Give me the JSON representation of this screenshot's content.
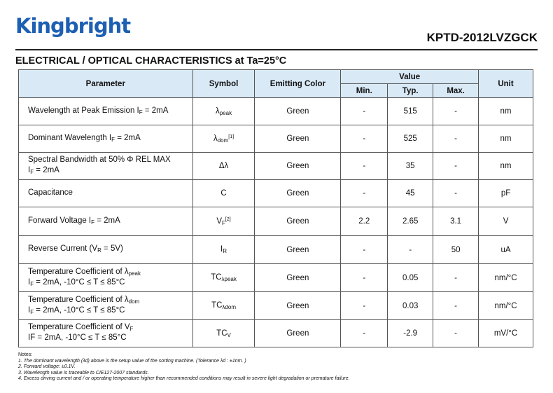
{
  "header": {
    "logo": "Kingbright",
    "part_number": "KPTD-2012LVZGCK",
    "section_title": "ELECTRICAL / OPTICAL CHARACTERISTICS at Ta=25°C"
  },
  "table": {
    "headers": {
      "parameter": "Parameter",
      "symbol": "Symbol",
      "color": "Emitting Color",
      "value": "Value",
      "min": "Min.",
      "typ": "Typ.",
      "max": "Max.",
      "unit": "Unit"
    },
    "rows": [
      {
        "p1a": "Wavelength at Peak Emission I",
        "p1s": "F",
        "p1b": " = 2mA",
        "p2a": "",
        "p2s": "",
        "p2b": "",
        "sym": "λ",
        "sym_sub": "peak",
        "sym_sup": "",
        "color": "Green",
        "min": "-",
        "typ": "515",
        "max": "-",
        "unit": "nm"
      },
      {
        "p1a": "Dominant Wavelength I",
        "p1s": "F",
        "p1b": " = 2mA",
        "p2a": "",
        "p2s": "",
        "p2b": "",
        "sym": "λ",
        "sym_sub": "dom",
        "sym_sup": "[1]",
        "color": "Green",
        "min": "-",
        "typ": "525",
        "max": "-",
        "unit": "nm"
      },
      {
        "p1a": "Spectral Bandwidth at 50% Φ REL MAX",
        "p1s": "",
        "p1b": "",
        "p2a": "I",
        "p2s": "F",
        "p2b": " = 2mA",
        "sym": "Δλ",
        "sym_sub": "",
        "sym_sup": "",
        "color": "Green",
        "min": "-",
        "typ": "35",
        "max": "-",
        "unit": "nm"
      },
      {
        "p1a": "Capacitance",
        "p1s": "",
        "p1b": "",
        "p2a": "",
        "p2s": "",
        "p2b": "",
        "sym": "C",
        "sym_sub": "",
        "sym_sup": "",
        "color": "Green",
        "min": "-",
        "typ": "45",
        "max": "-",
        "unit": "pF"
      },
      {
        "p1a": "Forward Voltage I",
        "p1s": "F",
        "p1b": " = 2mA",
        "p2a": "",
        "p2s": "",
        "p2b": "",
        "sym": "V",
        "sym_sub": "F",
        "sym_sup": "[2]",
        "color": "Green",
        "min": "2.2",
        "typ": "2.65",
        "max": "3.1",
        "unit": "V"
      },
      {
        "p1a": "Reverse Current (V",
        "p1s": "R",
        "p1b": " = 5V)",
        "p2a": "",
        "p2s": "",
        "p2b": "",
        "sym": "I",
        "sym_sub": "R",
        "sym_sup": "",
        "color": "Green",
        "min": "-",
        "typ": "-",
        "max": "50",
        "unit": "uA"
      },
      {
        "p1a": "Temperature Coefficient of λ",
        "p1s": "peak",
        "p1b": "",
        "p2a": "I",
        "p2s": "F",
        "p2b": " = 2mA, -10°C ≤ T ≤ 85°C",
        "sym": "TC",
        "sym_sub": "λpeak",
        "sym_sup": "",
        "color": "Green",
        "min": "-",
        "typ": "0.05",
        "max": "-",
        "unit": "nm/°C"
      },
      {
        "p1a": "Temperature Coefficient of λ",
        "p1s": "dom",
        "p1b": "",
        "p2a": "I",
        "p2s": "F",
        "p2b": " = 2mA, -10°C ≤ T ≤ 85°C",
        "sym": "TC",
        "sym_sub": "λdom",
        "sym_sup": "",
        "color": "Green",
        "min": "-",
        "typ": "0.03",
        "max": "-",
        "unit": "nm/°C"
      },
      {
        "p1a": "Temperature Coefficient of  V",
        "p1s": "F",
        "p1b": "",
        "p2a": "IF = 2mA, -10°C ≤ T ≤ 85°C",
        "p2s": "",
        "p2b": "",
        "sym": "TC",
        "sym_sub": "V",
        "sym_sup": "",
        "color": "Green",
        "min": "-",
        "typ": "-2.9",
        "max": "-",
        "unit": "mV/°C"
      }
    ]
  },
  "notes": {
    "title": "Notes:",
    "items": [
      "1. The dominant wavelength (λd) above is the setup value of the sorting machine.  (Tolerance  λd : ±1nm. )",
      "2. Forward voltage: ±0.1V.",
      "3. Wavelength value is traceable to CIE127-2007 standards.",
      "4. Excess driving current and / or operating temperature higher than recommended conditions may result in severe light degradation or premature failure."
    ]
  }
}
